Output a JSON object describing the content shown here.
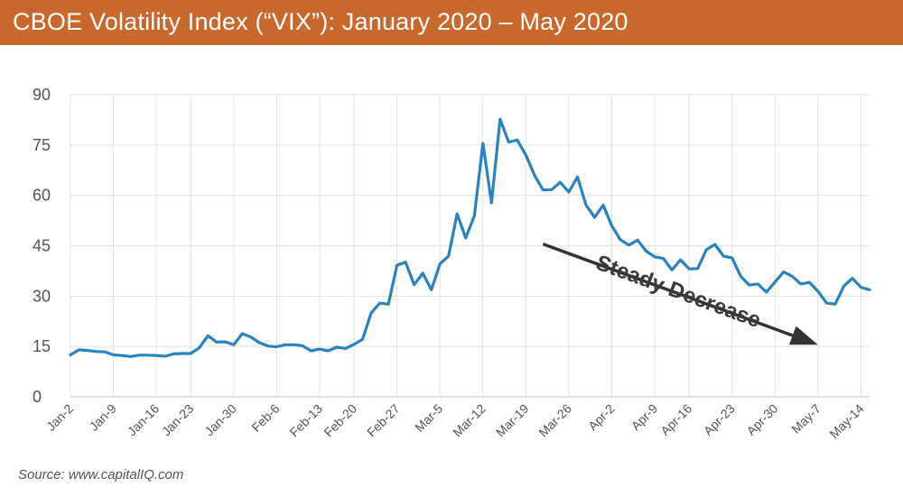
{
  "header": {
    "title": "CBOE Volatility Index (“VIX”): January 2020 – May 2020",
    "bg_color": "#c8682d"
  },
  "footer": {
    "source": "Source: www.capitalIQ.com"
  },
  "chart_data": {
    "type": "line",
    "title": "CBOE Volatility Index (“VIX”): January 2020 – May 2020",
    "xlabel": "",
    "ylabel": "",
    "ylim": [
      0,
      90
    ],
    "yticks": [
      0,
      15,
      30,
      45,
      60,
      75,
      90
    ],
    "grid": true,
    "line_color": "#2a82be",
    "x_tick_labels": [
      "Jan-2",
      "Jan-9",
      "Jan-16",
      "Jan-23",
      "Jan-30",
      "Feb-6",
      "Feb-13",
      "Feb-20",
      "Feb-27",
      "Mar-5",
      "Mar-12",
      "Mar-19",
      "Mar-26",
      "Apr-2",
      "Apr-9",
      "Apr-16",
      "Apr-23",
      "Apr-30",
      "May-7",
      "May-14"
    ],
    "series": [
      {
        "name": "VIX",
        "dates": [
          "Jan-2",
          "Jan-3",
          "Jan-6",
          "Jan-7",
          "Jan-8",
          "Jan-9",
          "Jan-10",
          "Jan-13",
          "Jan-14",
          "Jan-15",
          "Jan-16",
          "Jan-17",
          "Jan-21",
          "Jan-22",
          "Jan-23",
          "Jan-24",
          "Jan-27",
          "Jan-28",
          "Jan-29",
          "Jan-30",
          "Jan-31",
          "Feb-3",
          "Feb-4",
          "Feb-5",
          "Feb-6",
          "Feb-7",
          "Feb-10",
          "Feb-11",
          "Feb-12",
          "Feb-13",
          "Feb-14",
          "Feb-18",
          "Feb-19",
          "Feb-20",
          "Feb-21",
          "Feb-24",
          "Feb-25",
          "Feb-26",
          "Feb-27",
          "Feb-28",
          "Mar-2",
          "Mar-3",
          "Mar-4",
          "Mar-5",
          "Mar-6",
          "Mar-9",
          "Mar-10",
          "Mar-11",
          "Mar-12",
          "Mar-13",
          "Mar-16",
          "Mar-17",
          "Mar-18",
          "Mar-19",
          "Mar-20",
          "Mar-23",
          "Mar-24",
          "Mar-25",
          "Mar-26",
          "Mar-27",
          "Mar-30",
          "Mar-31",
          "Apr-1",
          "Apr-2",
          "Apr-3",
          "Apr-6",
          "Apr-7",
          "Apr-8",
          "Apr-9",
          "Apr-13",
          "Apr-14",
          "Apr-15",
          "Apr-16",
          "Apr-17",
          "Apr-20",
          "Apr-21",
          "Apr-22",
          "Apr-23",
          "Apr-24",
          "Apr-27",
          "Apr-28",
          "Apr-29",
          "Apr-30",
          "May-1",
          "May-4",
          "May-5",
          "May-6",
          "May-7",
          "May-8",
          "May-11",
          "May-12",
          "May-13",
          "May-14",
          "May-15"
        ],
        "values": [
          12.5,
          14.0,
          13.8,
          13.5,
          13.4,
          12.5,
          12.3,
          12.0,
          12.4,
          12.4,
          12.3,
          12.1,
          12.8,
          12.9,
          12.9,
          14.6,
          18.2,
          16.3,
          16.4,
          15.5,
          18.8,
          17.8,
          16.1,
          15.1,
          14.9,
          15.5,
          15.5,
          15.2,
          13.7,
          14.2,
          13.7,
          14.8,
          14.4,
          15.6,
          17.1,
          25.0,
          27.9,
          27.6,
          39.2,
          40.1,
          33.4,
          36.8,
          31.9,
          39.6,
          41.9,
          54.5,
          47.3,
          53.9,
          75.5,
          57.8,
          82.7,
          75.9,
          76.5,
          72.0,
          66.0,
          61.6,
          61.7,
          63.9,
          61.0,
          65.5,
          57.1,
          53.5,
          57.1,
          50.9,
          46.8,
          45.2,
          46.7,
          43.4,
          41.7,
          41.2,
          37.8,
          40.8,
          38.1,
          38.2,
          43.8,
          45.4,
          41.9,
          41.4,
          35.9,
          33.3,
          33.6,
          31.2,
          34.2,
          37.2,
          35.9,
          33.6,
          34.1,
          31.4,
          27.9,
          27.6,
          33.0,
          35.3,
          32.6,
          31.9
        ]
      }
    ],
    "annotation": {
      "text": "Steady Decrease",
      "arrow_from": {
        "date": "Mar-23",
        "value": 45.5
      },
      "arrow_to": {
        "date": "May-7",
        "value": 15.5
      }
    }
  }
}
